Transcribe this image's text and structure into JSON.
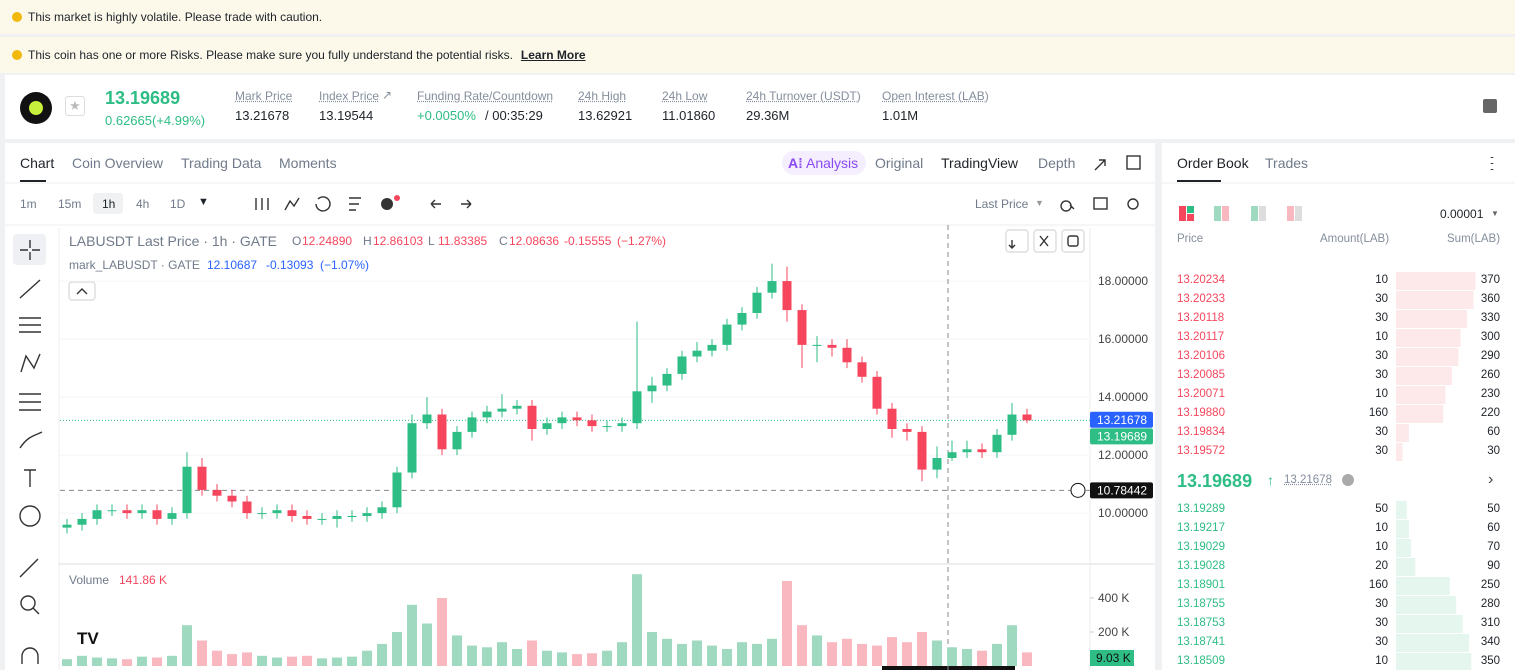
{
  "banners": [
    "This market is highly volatile. Please trade with caution.",
    "This coin has one or more Risks. Please make sure you fully understand the potential risks."
  ],
  "banner_link": "Learn More",
  "ticker": {
    "price": "13.19689",
    "change": "0.62665(+4.99%)"
  },
  "stats": [
    {
      "label": "Mark Price",
      "value": "13.21678"
    },
    {
      "label": "Index Price",
      "value": "13.19544"
    },
    {
      "label": "Funding Rate/Countdown",
      "value": "+0.0050%",
      "value2": "/ 00:35:29"
    },
    {
      "label": "24h High",
      "value": "13.62921"
    },
    {
      "label": "24h Low",
      "value": "11.01860"
    },
    {
      "label": "24h Turnover (USDT)",
      "value": "29.36M"
    },
    {
      "label": "Open Interest (LAB)",
      "value": "1.01M"
    }
  ],
  "tabs": [
    "Chart",
    "Coin Overview",
    "Trading Data",
    "Moments"
  ],
  "view_tabs": [
    "Analysis",
    "Original",
    "TradingView",
    "Depth"
  ],
  "intervals": [
    "1m",
    "15m",
    "1h",
    "4h",
    "1D"
  ],
  "price_type": "Last Price",
  "chart_data": {
    "type": "candlestick",
    "title": "LABUSDT Last Price · 1h · GATE",
    "legend": [
      {
        "label": "O",
        "value": "12.24890"
      },
      {
        "label": "H",
        "value": "12.86103"
      },
      {
        "label": "L",
        "value": "11.83385"
      },
      {
        "label": "C",
        "value": "12.08636"
      }
    ],
    "change": "-0.15555",
    "change_pct": "(−1.27%)",
    "mark_legend": {
      "name": "mark_LABUSDT · GATE",
      "value": "12.10687",
      "change": "-0.13093",
      "change_pct": "(−1.07%)"
    },
    "up_color": "#2ebd85",
    "down_color": "#f6465d",
    "candles": [
      [
        9.5,
        9.8,
        9.3,
        9.6
      ],
      [
        9.6,
        10.0,
        9.4,
        9.8
      ],
      [
        9.8,
        10.3,
        9.6,
        10.1
      ],
      [
        10.1,
        10.3,
        9.9,
        10.1
      ],
      [
        10.1,
        10.3,
        9.8,
        10.0
      ],
      [
        10.0,
        10.3,
        9.8,
        10.1
      ],
      [
        10.1,
        10.3,
        9.6,
        9.8
      ],
      [
        9.8,
        10.2,
        9.6,
        10.0
      ],
      [
        10.0,
        12.1,
        9.8,
        11.6
      ],
      [
        11.6,
        11.9,
        10.6,
        10.8
      ],
      [
        10.8,
        11.0,
        10.4,
        10.6
      ],
      [
        10.6,
        10.8,
        10.2,
        10.4
      ],
      [
        10.4,
        10.6,
        9.8,
        10.0
      ],
      [
        10.0,
        10.2,
        9.8,
        10.0
      ],
      [
        10.0,
        10.3,
        9.8,
        10.1
      ],
      [
        10.1,
        10.3,
        9.7,
        9.9
      ],
      [
        9.9,
        10.1,
        9.6,
        9.8
      ],
      [
        9.8,
        10.0,
        9.6,
        9.8
      ],
      [
        9.8,
        10.1,
        9.5,
        9.9
      ],
      [
        9.9,
        10.1,
        9.7,
        9.9
      ],
      [
        9.9,
        10.2,
        9.7,
        10.0
      ],
      [
        10.0,
        10.4,
        9.8,
        10.2
      ],
      [
        10.2,
        11.6,
        10.0,
        11.4
      ],
      [
        11.4,
        13.4,
        11.2,
        13.1
      ],
      [
        13.1,
        14.0,
        12.9,
        13.4
      ],
      [
        13.4,
        13.6,
        12.0,
        12.2
      ],
      [
        12.2,
        13.0,
        12.0,
        12.8
      ],
      [
        12.8,
        13.5,
        12.6,
        13.3
      ],
      [
        13.3,
        13.7,
        13.1,
        13.5
      ],
      [
        13.5,
        14.1,
        13.3,
        13.6
      ],
      [
        13.6,
        13.9,
        13.4,
        13.7
      ],
      [
        13.7,
        13.9,
        12.5,
        12.9
      ],
      [
        12.9,
        13.3,
        12.7,
        13.1
      ],
      [
        13.1,
        13.5,
        12.9,
        13.3
      ],
      [
        13.3,
        13.5,
        13.0,
        13.2
      ],
      [
        13.2,
        13.4,
        12.8,
        13.0
      ],
      [
        13.0,
        13.2,
        12.8,
        13.0
      ],
      [
        13.0,
        13.3,
        12.8,
        13.1
      ],
      [
        13.1,
        16.6,
        12.9,
        14.2
      ],
      [
        14.2,
        14.7,
        13.8,
        14.4
      ],
      [
        14.4,
        15.0,
        14.2,
        14.8
      ],
      [
        14.8,
        15.6,
        14.6,
        15.4
      ],
      [
        15.4,
        15.9,
        15.2,
        15.6
      ],
      [
        15.6,
        16.0,
        15.4,
        15.8
      ],
      [
        15.8,
        16.7,
        15.6,
        16.5
      ],
      [
        16.5,
        17.1,
        16.3,
        16.9
      ],
      [
        16.9,
        17.8,
        16.7,
        17.6
      ],
      [
        17.6,
        18.6,
        17.4,
        18.0
      ],
      [
        18.0,
        18.5,
        16.6,
        17.0
      ],
      [
        17.0,
        17.2,
        15.0,
        15.8
      ],
      [
        15.8,
        16.1,
        15.2,
        15.8
      ],
      [
        15.8,
        16.0,
        15.4,
        15.7
      ],
      [
        15.7,
        16.0,
        15.0,
        15.2
      ],
      [
        15.2,
        15.4,
        14.5,
        14.7
      ],
      [
        14.7,
        14.9,
        13.4,
        13.6
      ],
      [
        13.6,
        13.8,
        12.6,
        12.9
      ],
      [
        12.9,
        13.1,
        12.5,
        12.8
      ],
      [
        12.8,
        13.0,
        11.1,
        11.5
      ],
      [
        11.5,
        12.3,
        11.2,
        11.9
      ],
      [
        11.9,
        12.5,
        11.8,
        12.1
      ],
      [
        12.1,
        12.5,
        11.9,
        12.2
      ],
      [
        12.2,
        12.4,
        11.9,
        12.1
      ],
      [
        12.1,
        12.9,
        11.9,
        12.7
      ],
      [
        12.7,
        13.8,
        12.5,
        13.4
      ],
      [
        13.4,
        13.6,
        13.1,
        13.2
      ]
    ],
    "ylim": [
      8.28,
      19.83
    ],
    "yticks": [
      {
        "value": 10,
        "label": "10.00000"
      },
      {
        "value": 12,
        "label": "12.00000"
      },
      {
        "value": 14,
        "label": "14.00000"
      },
      {
        "value": 16,
        "label": "16.00000"
      },
      {
        "value": 18,
        "label": "18.00000"
      }
    ],
    "mark_price": 13.21678,
    "last_price": 13.19689,
    "crosshair": 10.78442,
    "volume": {
      "title": "Volume",
      "current": "141.86 K",
      "ylim": [
        0,
        600000
      ],
      "yticks": [
        {
          "value": 200000,
          "label": "200 K"
        },
        {
          "value": 400000,
          "label": "400 K"
        }
      ],
      "crosshair_label": "9.03 K",
      "values": [
        40000,
        60000,
        50000,
        45000,
        40000,
        55000,
        50000,
        60000,
        240000,
        150000,
        90000,
        70000,
        80000,
        60000,
        50000,
        55000,
        60000,
        45000,
        50000,
        55000,
        90000,
        130000,
        200000,
        360000,
        250000,
        400000,
        180000,
        120000,
        110000,
        140000,
        100000,
        150000,
        90000,
        80000,
        70000,
        75000,
        90000,
        140000,
        540000,
        200000,
        160000,
        130000,
        150000,
        120000,
        100000,
        140000,
        130000,
        160000,
        500000,
        240000,
        180000,
        140000,
        160000,
        130000,
        120000,
        170000,
        140000,
        200000,
        150000,
        110000,
        100000,
        90000,
        130000,
        240000,
        80000
      ]
    }
  },
  "order_book": {
    "tabs": [
      "Order Book",
      "Trades"
    ],
    "tick": "0.00001",
    "headers": [
      "Price",
      "Amount(LAB)",
      "Sum(LAB)"
    ],
    "asks": [
      {
        "price": "13.20234",
        "amount": 10,
        "sum": 370
      },
      {
        "price": "13.20233",
        "amount": 30,
        "sum": 360
      },
      {
        "price": "13.20118",
        "amount": 30,
        "sum": 330
      },
      {
        "price": "13.20117",
        "amount": 10,
        "sum": 300
      },
      {
        "price": "13.20106",
        "amount": 30,
        "sum": 290
      },
      {
        "price": "13.20085",
        "amount": 30,
        "sum": 260
      },
      {
        "price": "13.20071",
        "amount": 10,
        "sum": 230
      },
      {
        "price": "13.19880",
        "amount": 160,
        "sum": 220
      },
      {
        "price": "13.19834",
        "amount": 30,
        "sum": 60
      },
      {
        "price": "13.19572",
        "amount": 30,
        "sum": 30
      }
    ],
    "mid": {
      "price": "13.19689",
      "mark": "13.21678"
    },
    "bids": [
      {
        "price": "13.19289",
        "amount": 50,
        "sum": 50
      },
      {
        "price": "13.19217",
        "amount": 10,
        "sum": 60
      },
      {
        "price": "13.19029",
        "amount": 10,
        "sum": 70
      },
      {
        "price": "13.19028",
        "amount": 20,
        "sum": 90
      },
      {
        "price": "13.18901",
        "amount": 160,
        "sum": 250
      },
      {
        "price": "13.18755",
        "amount": 30,
        "sum": 280
      },
      {
        "price": "13.18753",
        "amount": 30,
        "sum": 310
      },
      {
        "price": "13.18741",
        "amount": 30,
        "sum": 340
      },
      {
        "price": "13.18509",
        "amount": 10,
        "sum": 350
      }
    ]
  }
}
